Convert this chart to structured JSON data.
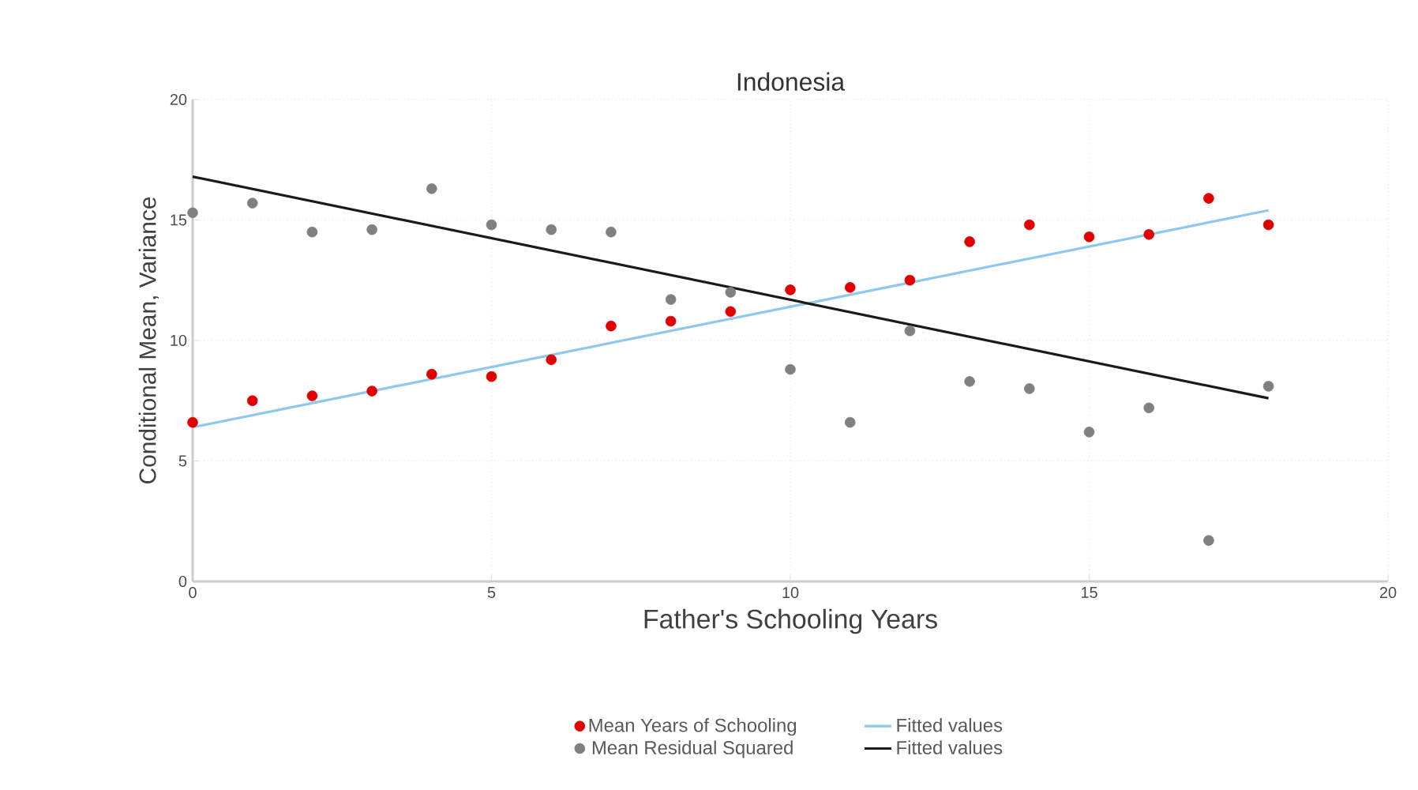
{
  "chart_data": {
    "type": "scatter",
    "title": "Indonesia",
    "xlabel": "Father's Schooling Years",
    "ylabel": "Conditional Mean, Variance",
    "xlim": [
      0,
      20
    ],
    "ylim": [
      0,
      20
    ],
    "xticks": [
      0,
      5,
      10,
      15,
      20
    ],
    "yticks": [
      0,
      5,
      10,
      15,
      20
    ],
    "grid": true,
    "legend": "bottom",
    "series": [
      {
        "name": "Mean Years of Schooling",
        "marker": "circle",
        "color": "#e00000",
        "x": [
          0,
          1,
          2,
          3,
          4,
          5,
          6,
          7,
          8,
          9,
          10,
          11,
          12,
          13,
          14,
          15,
          16,
          17,
          18
        ],
        "values": [
          6.6,
          7.5,
          7.7,
          7.9,
          8.6,
          8.5,
          9.2,
          10.6,
          10.8,
          11.2,
          12.1,
          12.2,
          12.5,
          14.1,
          14.8,
          14.3,
          14.4,
          15.9,
          14.8
        ]
      },
      {
        "name": "Fitted values",
        "type": "line",
        "line_style": "solid",
        "color": "#8ec8ee",
        "x": [
          0,
          18
        ],
        "values": [
          6.4,
          15.4
        ]
      },
      {
        "name": "Mean Residual Squared",
        "marker": "circle",
        "color": "#808080",
        "x": [
          0,
          1,
          2,
          3,
          4,
          5,
          6,
          7,
          8,
          9,
          10,
          11,
          12,
          13,
          14,
          15,
          16,
          17,
          18
        ],
        "values": [
          15.3,
          15.7,
          14.5,
          14.6,
          16.3,
          14.8,
          14.6,
          14.5,
          11.7,
          12.0,
          8.8,
          6.6,
          10.4,
          8.3,
          8.0,
          6.2,
          7.2,
          1.7,
          8.1
        ]
      },
      {
        "name": "Fitted values",
        "type": "line",
        "line_style": "solid",
        "color": "#1a1a1a",
        "x": [
          0,
          18
        ],
        "values": [
          16.8,
          7.6
        ]
      }
    ]
  }
}
